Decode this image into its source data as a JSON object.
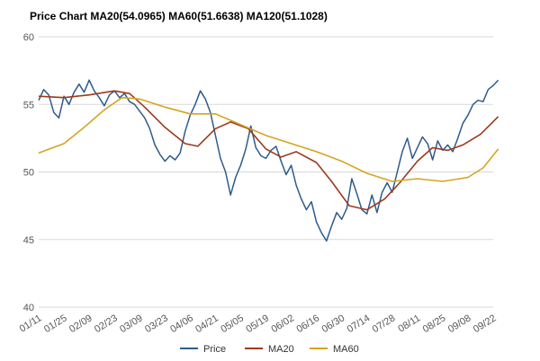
{
  "chart_data": {
    "type": "line",
    "title": "Price Chart MA20(54.0965) MA60(51.6638) MA120(51.1028)",
    "ylim": [
      40,
      60
    ],
    "yticks": [
      40,
      45,
      50,
      55,
      60
    ],
    "x_tick_labels": [
      "01/11",
      "01/25",
      "02/09",
      "02/23",
      "03/09",
      "03/23",
      "04/06",
      "04/21",
      "05/05",
      "05/19",
      "06/02",
      "06/16",
      "06/30",
      "07/14",
      "07/28",
      "08/11",
      "08/25",
      "09/08",
      "09/22"
    ],
    "grid": true,
    "legend_position": "bottom",
    "colors": {
      "price": "#2e5b8c",
      "ma20": "#9c3a1e",
      "ma60": "#d4a420",
      "grid": "#d9d9d9"
    },
    "series": [
      {
        "name": "Price",
        "key": "price",
        "points": [
          [
            0,
            55.3
          ],
          [
            0.2,
            56.1
          ],
          [
            0.4,
            55.7
          ],
          [
            0.6,
            54.4
          ],
          [
            0.8,
            54.0
          ],
          [
            1.0,
            55.6
          ],
          [
            1.2,
            55.0
          ],
          [
            1.4,
            55.9
          ],
          [
            1.6,
            56.5
          ],
          [
            1.8,
            55.9
          ],
          [
            2.0,
            56.8
          ],
          [
            2.2,
            56.0
          ],
          [
            2.4,
            55.5
          ],
          [
            2.6,
            54.9
          ],
          [
            2.8,
            55.7
          ],
          [
            3.0,
            56.0
          ],
          [
            3.2,
            55.5
          ],
          [
            3.4,
            55.8
          ],
          [
            3.6,
            55.2
          ],
          [
            3.8,
            55.0
          ],
          [
            4.0,
            54.5
          ],
          [
            4.2,
            54.0
          ],
          [
            4.4,
            53.2
          ],
          [
            4.6,
            52.0
          ],
          [
            4.8,
            51.3
          ],
          [
            5.0,
            50.8
          ],
          [
            5.2,
            51.2
          ],
          [
            5.4,
            50.9
          ],
          [
            5.6,
            51.4
          ],
          [
            5.8,
            53.0
          ],
          [
            6.0,
            54.2
          ],
          [
            6.2,
            55.0
          ],
          [
            6.4,
            56.0
          ],
          [
            6.6,
            55.4
          ],
          [
            6.8,
            54.4
          ],
          [
            7.0,
            52.7
          ],
          [
            7.2,
            51.0
          ],
          [
            7.4,
            50.0
          ],
          [
            7.6,
            48.3
          ],
          [
            7.8,
            49.6
          ],
          [
            8.0,
            50.5
          ],
          [
            8.2,
            51.7
          ],
          [
            8.4,
            53.4
          ],
          [
            8.6,
            51.8
          ],
          [
            8.8,
            51.2
          ],
          [
            9.0,
            51.0
          ],
          [
            9.2,
            51.6
          ],
          [
            9.4,
            51.9
          ],
          [
            9.6,
            50.8
          ],
          [
            9.8,
            49.8
          ],
          [
            10.0,
            50.5
          ],
          [
            10.2,
            49.0
          ],
          [
            10.4,
            48.0
          ],
          [
            10.6,
            47.2
          ],
          [
            10.8,
            47.8
          ],
          [
            11.0,
            46.3
          ],
          [
            11.2,
            45.5
          ],
          [
            11.4,
            44.9
          ],
          [
            11.6,
            46.0
          ],
          [
            11.8,
            47.0
          ],
          [
            12.0,
            46.5
          ],
          [
            12.2,
            47.3
          ],
          [
            12.4,
            49.5
          ],
          [
            12.6,
            48.4
          ],
          [
            12.8,
            47.2
          ],
          [
            13.0,
            46.9
          ],
          [
            13.2,
            48.3
          ],
          [
            13.4,
            47.0
          ],
          [
            13.6,
            48.5
          ],
          [
            13.8,
            49.2
          ],
          [
            14.0,
            48.5
          ],
          [
            14.2,
            50.0
          ],
          [
            14.4,
            51.5
          ],
          [
            14.6,
            52.5
          ],
          [
            14.8,
            51.0
          ],
          [
            15.0,
            51.8
          ],
          [
            15.2,
            52.6
          ],
          [
            15.4,
            52.1
          ],
          [
            15.6,
            50.9
          ],
          [
            15.8,
            52.3
          ],
          [
            16.0,
            51.6
          ],
          [
            16.2,
            52.0
          ],
          [
            16.4,
            51.5
          ],
          [
            16.6,
            52.5
          ],
          [
            16.8,
            53.6
          ],
          [
            17.0,
            54.2
          ],
          [
            17.2,
            55.0
          ],
          [
            17.4,
            55.3
          ],
          [
            17.6,
            55.2
          ],
          [
            17.8,
            56.1
          ],
          [
            18.0,
            56.4
          ],
          [
            18.2,
            56.8
          ]
        ]
      },
      {
        "name": "MA20",
        "key": "ma20",
        "points": [
          [
            0,
            55.6
          ],
          [
            1,
            55.5
          ],
          [
            2,
            55.7
          ],
          [
            3,
            56.0
          ],
          [
            3.6,
            55.8
          ],
          [
            4.2,
            54.8
          ],
          [
            5,
            53.3
          ],
          [
            5.8,
            52.1
          ],
          [
            6.3,
            51.9
          ],
          [
            7,
            53.2
          ],
          [
            7.6,
            53.7
          ],
          [
            8.3,
            53.2
          ],
          [
            9,
            51.7
          ],
          [
            9.6,
            51.1
          ],
          [
            10.2,
            51.5
          ],
          [
            11,
            50.7
          ],
          [
            11.6,
            49.3
          ],
          [
            12.3,
            47.5
          ],
          [
            13,
            47.2
          ],
          [
            13.7,
            48.0
          ],
          [
            14.3,
            49.2
          ],
          [
            15,
            50.8
          ],
          [
            15.6,
            51.8
          ],
          [
            16.2,
            51.6
          ],
          [
            16.8,
            52.0
          ],
          [
            17.5,
            52.8
          ],
          [
            18.2,
            54.1
          ]
        ]
      },
      {
        "name": "MA60",
        "key": "ma60",
        "points": [
          [
            0,
            51.4
          ],
          [
            1,
            52.1
          ],
          [
            1.8,
            53.3
          ],
          [
            2.6,
            54.6
          ],
          [
            3.3,
            55.5
          ],
          [
            4,
            55.4
          ],
          [
            5,
            54.8
          ],
          [
            6,
            54.3
          ],
          [
            7,
            54.3
          ],
          [
            8,
            53.5
          ],
          [
            9,
            52.7
          ],
          [
            10,
            52.1
          ],
          [
            11,
            51.5
          ],
          [
            12,
            50.8
          ],
          [
            13,
            49.9
          ],
          [
            14,
            49.3
          ],
          [
            15,
            49.5
          ],
          [
            16,
            49.3
          ],
          [
            17,
            49.6
          ],
          [
            17.6,
            50.3
          ],
          [
            18.2,
            51.7
          ]
        ]
      }
    ]
  }
}
